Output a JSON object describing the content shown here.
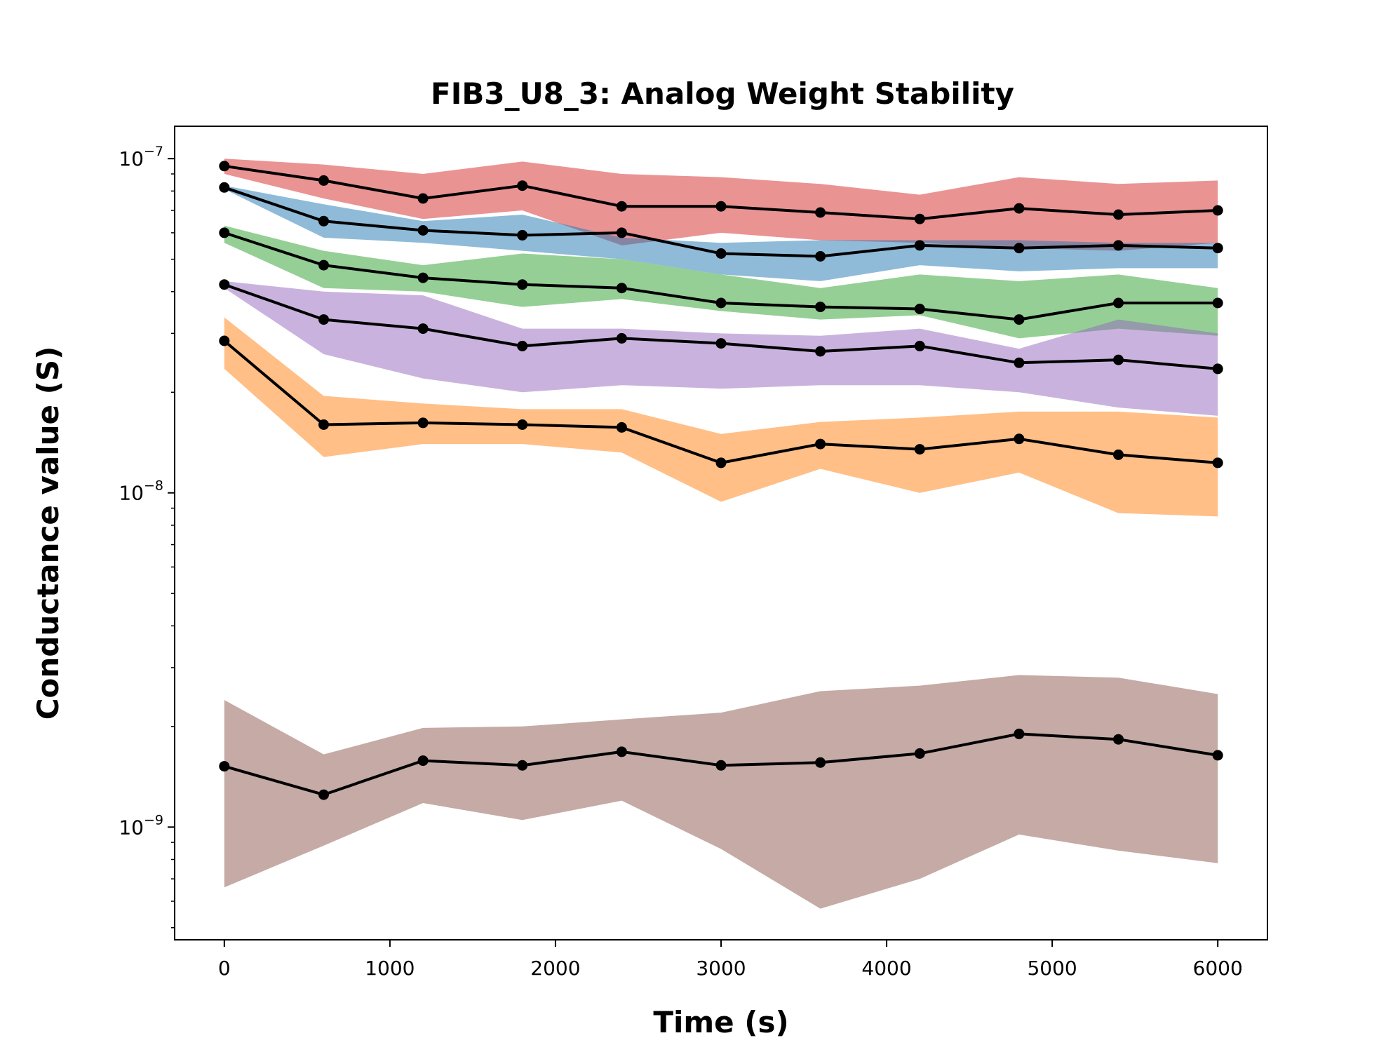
{
  "chart_data": {
    "type": "line",
    "title": "FIB3_U8_3: Analog Weight Stability",
    "xlabel": "Time (s)",
    "ylabel": "Conductance value (S)",
    "yscale": "log",
    "grid": false,
    "legend": "none",
    "xlim": [
      -300,
      6300
    ],
    "ylim": [
      4.6e-10,
      1.25e-07
    ],
    "xticks": [
      {
        "value": 0,
        "label": "0"
      },
      {
        "value": 1000,
        "label": "1000"
      },
      {
        "value": 2000,
        "label": "2000"
      },
      {
        "value": 3000,
        "label": "3000"
      },
      {
        "value": 4000,
        "label": "4000"
      },
      {
        "value": 5000,
        "label": "5000"
      },
      {
        "value": 6000,
        "label": "6000"
      }
    ],
    "yticks": [
      {
        "value": 1e-07,
        "base": "10",
        "exp": "−7"
      },
      {
        "value": 1e-08,
        "base": "10",
        "exp": "−8"
      },
      {
        "value": 1e-09,
        "base": "10",
        "exp": "−9"
      }
    ],
    "x": [
      0,
      600,
      1200,
      1800,
      2400,
      3000,
      3600,
      4200,
      4800,
      5400,
      6000
    ],
    "series": [
      {
        "color": "#d62728",
        "mean": [
          9.5e-08,
          8.6e-08,
          7.6e-08,
          8.3e-08,
          7.2e-08,
          7.2e-08,
          6.9e-08,
          6.6e-08,
          7.1e-08,
          6.8e-08,
          7e-08
        ],
        "upper": [
          1e-07,
          9.6e-08,
          9e-08,
          9.8e-08,
          9e-08,
          8.8e-08,
          8.4e-08,
          7.8e-08,
          8.8e-08,
          8.4e-08,
          8.6e-08
        ],
        "lower": [
          9e-08,
          7.6e-08,
          6.6e-08,
          7e-08,
          5.5e-08,
          6e-08,
          5.7e-08,
          5.6e-08,
          5.4e-08,
          5.3e-08,
          5.6e-08
        ]
      },
      {
        "color": "#1f77b4",
        "mean": [
          8.2e-08,
          6.5e-08,
          6.1e-08,
          5.9e-08,
          6e-08,
          5.2e-08,
          5.1e-08,
          5.5e-08,
          5.4e-08,
          5.5e-08,
          5.4e-08
        ],
        "upper": [
          8.3e-08,
          7.3e-08,
          6.5e-08,
          6.8e-08,
          5.8e-08,
          5.6e-08,
          5.7e-08,
          5.7e-08,
          5.7e-08,
          5.6e-08,
          5.6e-08
        ],
        "lower": [
          8.1e-08,
          5.8e-08,
          5.6e-08,
          5.3e-08,
          5e-08,
          4.5e-08,
          4.3e-08,
          4.8e-08,
          4.6e-08,
          4.7e-08,
          4.7e-08
        ]
      },
      {
        "color": "#2ca02c",
        "mean": [
          6e-08,
          4.8e-08,
          4.4e-08,
          4.2e-08,
          4.1e-08,
          3.7e-08,
          3.6e-08,
          3.55e-08,
          3.3e-08,
          3.7e-08,
          3.7e-08
        ],
        "upper": [
          6.3e-08,
          5.3e-08,
          4.8e-08,
          5.2e-08,
          5e-08,
          4.5e-08,
          4.1e-08,
          4.5e-08,
          4.3e-08,
          4.5e-08,
          4.1e-08
        ],
        "lower": [
          5.6e-08,
          4.1e-08,
          4e-08,
          3.6e-08,
          3.8e-08,
          3.5e-08,
          3.3e-08,
          3.4e-08,
          2.9e-08,
          3.1e-08,
          2.95e-08
        ]
      },
      {
        "color": "#9467bd",
        "mean": [
          4.2e-08,
          3.3e-08,
          3.1e-08,
          2.75e-08,
          2.9e-08,
          2.8e-08,
          2.65e-08,
          2.75e-08,
          2.45e-08,
          2.5e-08,
          2.35e-08
        ],
        "upper": [
          4.3e-08,
          4e-08,
          3.9e-08,
          3.1e-08,
          3.1e-08,
          3e-08,
          2.95e-08,
          3.1e-08,
          2.7e-08,
          3.3e-08,
          3e-08
        ],
        "lower": [
          4.1e-08,
          2.6e-08,
          2.2e-08,
          2e-08,
          2.1e-08,
          2.05e-08,
          2.1e-08,
          2.1e-08,
          2e-08,
          1.8e-08,
          1.7e-08
        ]
      },
      {
        "color": "#ff7f0e",
        "mean": [
          2.85e-08,
          1.6e-08,
          1.62e-08,
          1.6e-08,
          1.57e-08,
          1.23e-08,
          1.4e-08,
          1.35e-08,
          1.45e-08,
          1.3e-08,
          1.23e-08
        ],
        "upper": [
          3.35e-08,
          1.95e-08,
          1.85e-08,
          1.78e-08,
          1.78e-08,
          1.5e-08,
          1.63e-08,
          1.68e-08,
          1.75e-08,
          1.75e-08,
          1.68e-08
        ],
        "lower": [
          2.35e-08,
          1.28e-08,
          1.4e-08,
          1.4e-08,
          1.32e-08,
          9.4e-09,
          1.18e-08,
          1e-08,
          1.15e-08,
          8.7e-09,
          8.5e-09
        ]
      },
      {
        "color": "#8c564b",
        "mean": [
          1.52e-09,
          1.25e-09,
          1.58e-09,
          1.53e-09,
          1.68e-09,
          1.53e-09,
          1.56e-09,
          1.66e-09,
          1.9e-09,
          1.83e-09,
          1.64e-09
        ],
        "upper": [
          2.4e-09,
          1.65e-09,
          1.98e-09,
          2e-09,
          2.1e-09,
          2.2e-09,
          2.55e-09,
          2.65e-09,
          2.85e-09,
          2.8e-09,
          2.5e-09
        ],
        "lower": [
          6.6e-10,
          8.8e-10,
          1.18e-09,
          1.05e-09,
          1.2e-09,
          8.6e-10,
          5.7e-10,
          7e-10,
          9.5e-10,
          8.5e-10,
          7.8e-10
        ]
      }
    ]
  }
}
